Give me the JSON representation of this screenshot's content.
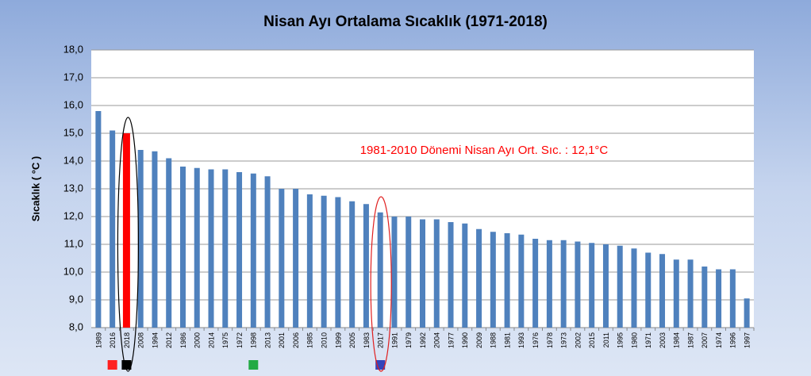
{
  "chart_data": {
    "type": "bar",
    "title": "Nisan Ayı Ortalama Sıcaklık (1971-2018)",
    "y_label": "Sıcaklık ( °C )",
    "annotation": "1981-2010 Dönemi  Nisan Ayı Ort. Sıc. : 12,1°C",
    "categories": [
      "1989",
      "2016",
      "2018",
      "2008",
      "1994",
      "2012",
      "1986",
      "2000",
      "2014",
      "1975",
      "1972",
      "1998",
      "2013",
      "2001",
      "2006",
      "1985",
      "2010",
      "1999",
      "2005",
      "1983",
      "2017",
      "1991",
      "1979",
      "1992",
      "2004",
      "1977",
      "1990",
      "2009",
      "1988",
      "1981",
      "1993",
      "1976",
      "1978",
      "1973",
      "2002",
      "2015",
      "2011",
      "1995",
      "1980",
      "1971",
      "2003",
      "1984",
      "1987",
      "2007",
      "1974",
      "1996",
      "1997"
    ],
    "values": [
      15.8,
      15.1,
      15.0,
      14.4,
      14.35,
      14.1,
      13.8,
      13.75,
      13.7,
      13.7,
      13.6,
      13.55,
      13.45,
      13.0,
      13.0,
      12.8,
      12.75,
      12.7,
      12.55,
      12.45,
      12.15,
      12.0,
      12.0,
      11.9,
      11.9,
      11.8,
      11.75,
      11.55,
      11.45,
      11.4,
      11.35,
      11.2,
      11.15,
      11.15,
      11.1,
      11.05,
      11.0,
      10.95,
      10.85,
      10.7,
      10.65,
      10.45,
      10.45,
      10.2,
      10.1,
      10.1,
      9.05
    ],
    "color": "#4f81bd",
    "highlight": {
      "2018": "#ff0000"
    },
    "ylim": [
      8,
      18
    ],
    "yticks": [
      {
        "value": 8,
        "label": "8,0"
      },
      {
        "value": 9,
        "label": "9,0"
      },
      {
        "value": 10,
        "label": "10,0"
      },
      {
        "value": 11,
        "label": "11,0"
      },
      {
        "value": 12,
        "label": "12,0"
      },
      {
        "value": 13,
        "label": "13,0"
      },
      {
        "value": 14,
        "label": "14,0"
      },
      {
        "value": 15,
        "label": "15,0"
      },
      {
        "value": 16,
        "label": "16,0"
      },
      {
        "value": 17,
        "label": "17,0"
      },
      {
        "value": 18,
        "label": "18,0"
      }
    ],
    "grid": true
  }
}
